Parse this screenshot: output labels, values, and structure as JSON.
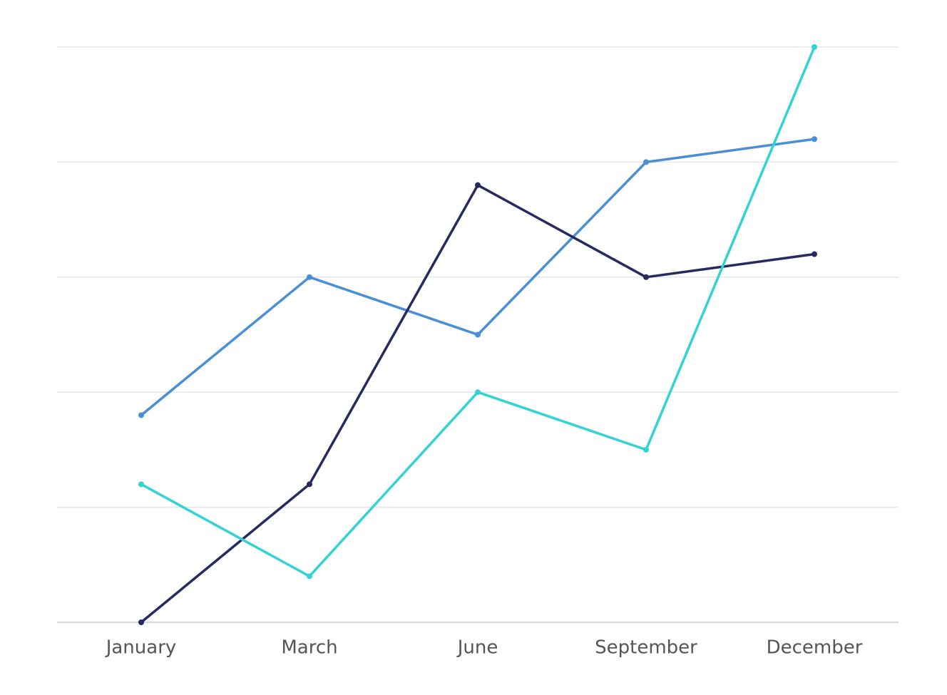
{
  "chart_data": {
    "type": "line",
    "categories": [
      "January",
      "March",
      "June",
      "September",
      "December"
    ],
    "series": [
      {
        "color": "#4a8fd6",
        "values": [
          1.8,
          3.0,
          2.5,
          4.0,
          4.2
        ]
      },
      {
        "color": "#262a5f",
        "values": [
          0,
          1.2,
          3.8,
          3.0,
          3.2
        ]
      },
      {
        "color": "#33d3d3",
        "values": [
          1.2,
          0.4,
          2.0,
          1.5,
          5.0
        ]
      }
    ],
    "ylim": [
      0,
      5
    ],
    "yticks": [
      0,
      1,
      2,
      3,
      4,
      5
    ],
    "grid": true
  }
}
